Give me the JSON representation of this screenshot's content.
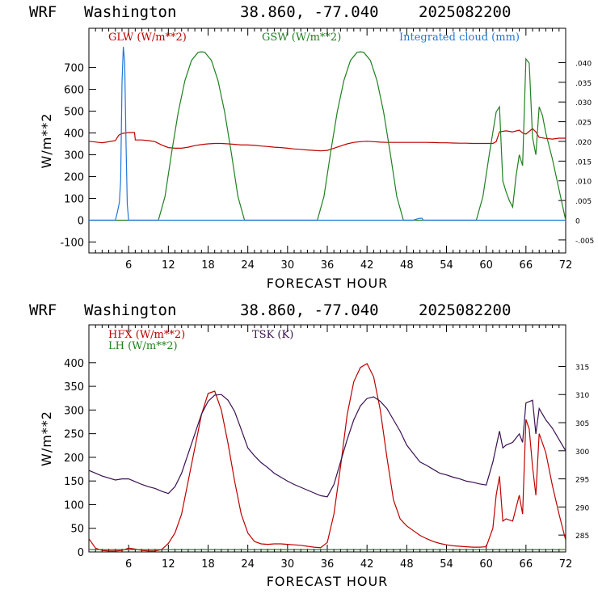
{
  "chart_data": [
    {
      "type": "line",
      "header": {
        "model": "WRF",
        "place": "Washington",
        "coords": "38.860, -77.040",
        "run": "2025082200"
      },
      "xlabel": "FORECAST HOUR",
      "ylabel": "W/m**2",
      "xlim": [
        0,
        72
      ],
      "ylim": [
        -150,
        880
      ],
      "xticks": [
        6,
        12,
        18,
        24,
        30,
        36,
        42,
        48,
        54,
        60,
        66,
        72
      ],
      "yticks": [
        -100,
        0,
        100,
        200,
        300,
        400,
        500,
        600,
        700
      ],
      "ylim_right": [
        -0.0083,
        0.0487
      ],
      "yticks_right": [
        -0.005,
        0,
        0.005,
        0.01,
        0.015,
        0.02,
        0.025,
        0.03,
        0.035,
        0.04
      ],
      "yticks_right_labels": [
        "-.005",
        "0",
        ".005",
        ".010",
        ".015",
        ".020",
        ".025",
        ".030",
        ".035",
        ".040"
      ],
      "zero_line": true,
      "series": [
        {
          "name": "GLW (W/m**2)",
          "color": "#c00000",
          "axis": "left",
          "x": [
            0,
            2,
            4,
            4.5,
            5,
            5.5,
            6,
            6.9,
            7,
            8,
            9,
            10,
            11,
            12,
            13,
            14,
            15,
            16,
            17,
            18,
            19,
            20,
            21,
            22,
            23,
            24,
            25,
            26,
            27,
            28,
            29,
            30,
            31,
            32,
            33,
            34,
            35,
            36,
            37,
            38,
            39,
            40,
            41,
            42,
            43,
            44,
            45,
            46,
            47,
            48,
            49,
            50,
            51,
            52,
            53,
            54,
            55,
            56,
            57,
            58,
            59,
            60,
            61,
            61.5,
            62,
            63,
            64,
            65,
            65.5,
            66,
            67,
            67.5,
            68,
            69,
            70,
            71,
            72
          ],
          "y": [
            362,
            355,
            365,
            390,
            398,
            400,
            402,
            402,
            368,
            368,
            365,
            360,
            345,
            333,
            330,
            330,
            335,
            342,
            347,
            350,
            352,
            352,
            350,
            348,
            345,
            345,
            343,
            340,
            338,
            335,
            333,
            330,
            327,
            325,
            322,
            320,
            318,
            320,
            330,
            340,
            350,
            357,
            360,
            362,
            360,
            358,
            357,
            357,
            357,
            357,
            357,
            357,
            357,
            356,
            355,
            355,
            354,
            353,
            353,
            352,
            352,
            352,
            352,
            360,
            405,
            410,
            405,
            413,
            400,
            395,
            420,
            405,
            380,
            375,
            372,
            376,
            376
          ]
        },
        {
          "name": "GSW (W/m**2)",
          "color": "#208020",
          "axis": "left",
          "x": [
            0,
            10.5,
            11.5,
            12.5,
            13.5,
            14.5,
            15.5,
            16.5,
            17,
            17.5,
            18.5,
            19.5,
            20.5,
            21.5,
            22.5,
            23.5,
            24,
            34.5,
            35.5,
            36.5,
            37.5,
            38.5,
            39.5,
            40.5,
            41,
            41.5,
            42.5,
            43.5,
            44.5,
            45.5,
            46.5,
            47.5,
            48,
            58.5,
            59.5,
            60.5,
            61.5,
            62,
            62.5,
            63,
            63.5,
            64,
            64.5,
            65,
            65.5,
            66,
            66.5,
            67,
            67.5,
            68,
            68.5,
            69,
            70,
            71,
            72
          ],
          "y": [
            0,
            0,
            109,
            310,
            496,
            640,
            733,
            770,
            772,
            770,
            733,
            640,
            496,
            310,
            109,
            0,
            0,
            0,
            109,
            310,
            496,
            640,
            733,
            770,
            772,
            770,
            733,
            640,
            496,
            310,
            109,
            0,
            0,
            0,
            109,
            310,
            496,
            520,
            180,
            130,
            90,
            60,
            200,
            300,
            250,
            740,
            720,
            380,
            300,
            520,
            480,
            400,
            280,
            140,
            0
          ]
        },
        {
          "name": "Integrated cloud (mm)",
          "color": "#1f78d8",
          "axis": "right",
          "x": [
            0,
            4,
            4.3,
            4.6,
            4.8,
            5,
            5.2,
            5.4,
            5.6,
            5.8,
            6,
            8,
            49,
            49.5,
            50,
            50.3,
            50.5,
            51,
            72
          ],
          "y": [
            0,
            0,
            0.002,
            0.0045,
            0.01,
            0.035,
            0.044,
            0.04,
            0.02,
            0.004,
            0,
            0,
            0,
            0.0003,
            0.0005,
            0.0005,
            0,
            0,
            0
          ]
        }
      ]
    },
    {
      "type": "line",
      "header": {
        "model": "WRF",
        "place": "Washington",
        "coords": "38.860, -77.040",
        "run": "2025082200"
      },
      "xlabel": "FORECAST HOUR",
      "ylabel": "W/m**2",
      "xlim": [
        0,
        72
      ],
      "ylim": [
        0,
        480
      ],
      "xticks": [
        6,
        12,
        18,
        24,
        30,
        36,
        42,
        48,
        54,
        60,
        66,
        72
      ],
      "yticks": [
        0,
        50,
        100,
        150,
        200,
        250,
        300,
        350,
        400
      ],
      "ylim_right": [
        282.0,
        322.4
      ],
      "yticks_right": [
        285,
        290,
        295,
        300,
        305,
        310,
        315
      ],
      "yticks_right_labels": [
        "285",
        "290",
        "295",
        "300",
        "305",
        "310",
        "315"
      ],
      "zero_line": false,
      "series": [
        {
          "name": "HFX (W/m**2)",
          "color": "#c00000",
          "axis": "left",
          "x": [
            0,
            1,
            2,
            3,
            4,
            5,
            6,
            7,
            8,
            9,
            10,
            11,
            12,
            13,
            14,
            15,
            16,
            17,
            18,
            19,
            20,
            21,
            22,
            23,
            24,
            25,
            26,
            27,
            28,
            29,
            30,
            31,
            32,
            33,
            34,
            35,
            36,
            37,
            38,
            39,
            40,
            41,
            42,
            43,
            44,
            45,
            46,
            47,
            48,
            49,
            50,
            51,
            52,
            53,
            54,
            55,
            56,
            57,
            58,
            59,
            60,
            61,
            61.5,
            62,
            62.5,
            63,
            64,
            65,
            65.5,
            66,
            66.5,
            67,
            67.5,
            68,
            69,
            70,
            71,
            72
          ],
          "y": [
            28,
            8,
            3,
            2,
            2,
            3,
            8,
            6,
            3,
            2,
            2,
            5,
            18,
            40,
            80,
            150,
            220,
            290,
            335,
            340,
            300,
            230,
            150,
            80,
            40,
            22,
            17,
            16,
            17,
            17,
            16,
            15,
            14,
            12,
            10,
            9,
            20,
            80,
            180,
            290,
            360,
            390,
            398,
            370,
            300,
            200,
            110,
            70,
            55,
            45,
            35,
            28,
            22,
            18,
            15,
            13,
            12,
            11,
            10,
            10,
            11,
            50,
            120,
            160,
            65,
            70,
            65,
            120,
            80,
            280,
            260,
            180,
            120,
            250,
            210,
            140,
            80,
            25
          ]
        },
        {
          "name": "LH  (W/m**2)",
          "color": "#208020",
          "axis": "left",
          "x": [
            0,
            72
          ],
          "y": [
            5,
            5
          ]
        },
        {
          "name": "TSK (K)",
          "color": "#3a1050",
          "axis": "right",
          "x": [
            0,
            2,
            4,
            5,
            6,
            7,
            8,
            9,
            10,
            11,
            12,
            13,
            14,
            15,
            16,
            17,
            18,
            19,
            20,
            21,
            22,
            23,
            24,
            25,
            26,
            27,
            28,
            29,
            30,
            31,
            32,
            33,
            34,
            35,
            36,
            37,
            38,
            39,
            40,
            41,
            42,
            43,
            44,
            45,
            46,
            47,
            48,
            49,
            50,
            51,
            52,
            53,
            54,
            55,
            56,
            57,
            58,
            59,
            60,
            61,
            62,
            62.5,
            63,
            64,
            65,
            65.5,
            66,
            67,
            67.5,
            68,
            69,
            70,
            71,
            72
          ],
          "y": [
            296.5,
            295.5,
            294.8,
            295.0,
            295.0,
            294.5,
            294.0,
            293.6,
            293.3,
            292.8,
            292.4,
            293.6,
            296.0,
            299.5,
            303.0,
            306.5,
            308.8,
            309.9,
            310.0,
            309.0,
            307.0,
            303.8,
            300.5,
            299.1,
            297.9,
            297.0,
            296.0,
            295.3,
            294.6,
            294.0,
            293.5,
            293.0,
            292.5,
            292.0,
            291.8,
            294.0,
            298.0,
            302.0,
            305.5,
            308.0,
            309.3,
            309.6,
            308.8,
            307.5,
            305.5,
            303.5,
            301.0,
            299.5,
            298.0,
            297.4,
            296.7,
            296.0,
            295.7,
            295.3,
            295.0,
            294.6,
            294.4,
            294.1,
            293.9,
            298.0,
            303.5,
            300.5,
            301.0,
            301.5,
            303.0,
            301.5,
            308.5,
            309.0,
            303.0,
            307.5,
            305.5,
            304.0,
            302.0,
            300.0
          ]
        }
      ]
    }
  ]
}
